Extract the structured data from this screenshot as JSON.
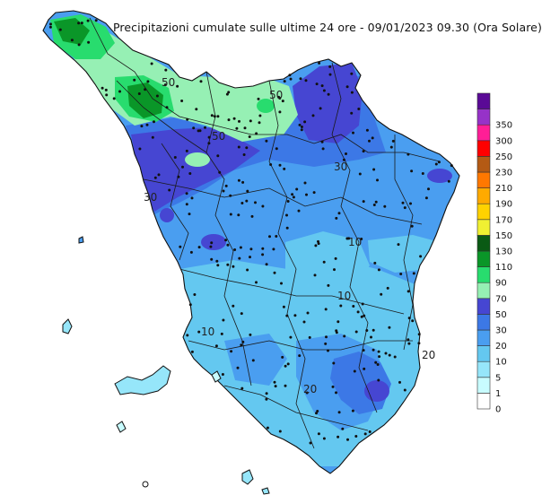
{
  "title": "Precipitazioni cumulate sulle ultime 24 ore - 09/01/2023 09.30 (Ora Solare)",
  "legend": {
    "bins": [
      {
        "label": "0",
        "color": "#ffffff"
      },
      {
        "label": "1",
        "color": "#c8fcff"
      },
      {
        "label": "5",
        "color": "#96e6fa"
      },
      {
        "label": "10",
        "color": "#64c8f0"
      },
      {
        "label": "20",
        "color": "#4a9ef0"
      },
      {
        "label": "30",
        "color": "#3c78e6"
      },
      {
        "label": "50",
        "color": "#4646d2"
      },
      {
        "label": "70",
        "color": "#96f0b4"
      },
      {
        "label": "90",
        "color": "#28dc6e"
      },
      {
        "label": "110",
        "color": "#0a9628"
      },
      {
        "label": "130",
        "color": "#0a5a14"
      },
      {
        "label": "150",
        "color": "#f0f032"
      },
      {
        "label": "170",
        "color": "#ffd200"
      },
      {
        "label": "190",
        "color": "#ffaa00"
      },
      {
        "label": "210",
        "color": "#ff7800"
      },
      {
        "label": "230",
        "color": "#b45a14"
      },
      {
        "label": "250",
        "color": "#ff0000"
      },
      {
        "label": "300",
        "color": "#ff1e96"
      },
      {
        "label": "350",
        "color": "#9632c8"
      },
      {
        "label": "",
        "color": "#5a0a96"
      }
    ]
  },
  "contour_labels": [
    "10",
    "10",
    "10",
    "20",
    "20",
    "30",
    "30",
    "50",
    "50",
    "50"
  ]
}
